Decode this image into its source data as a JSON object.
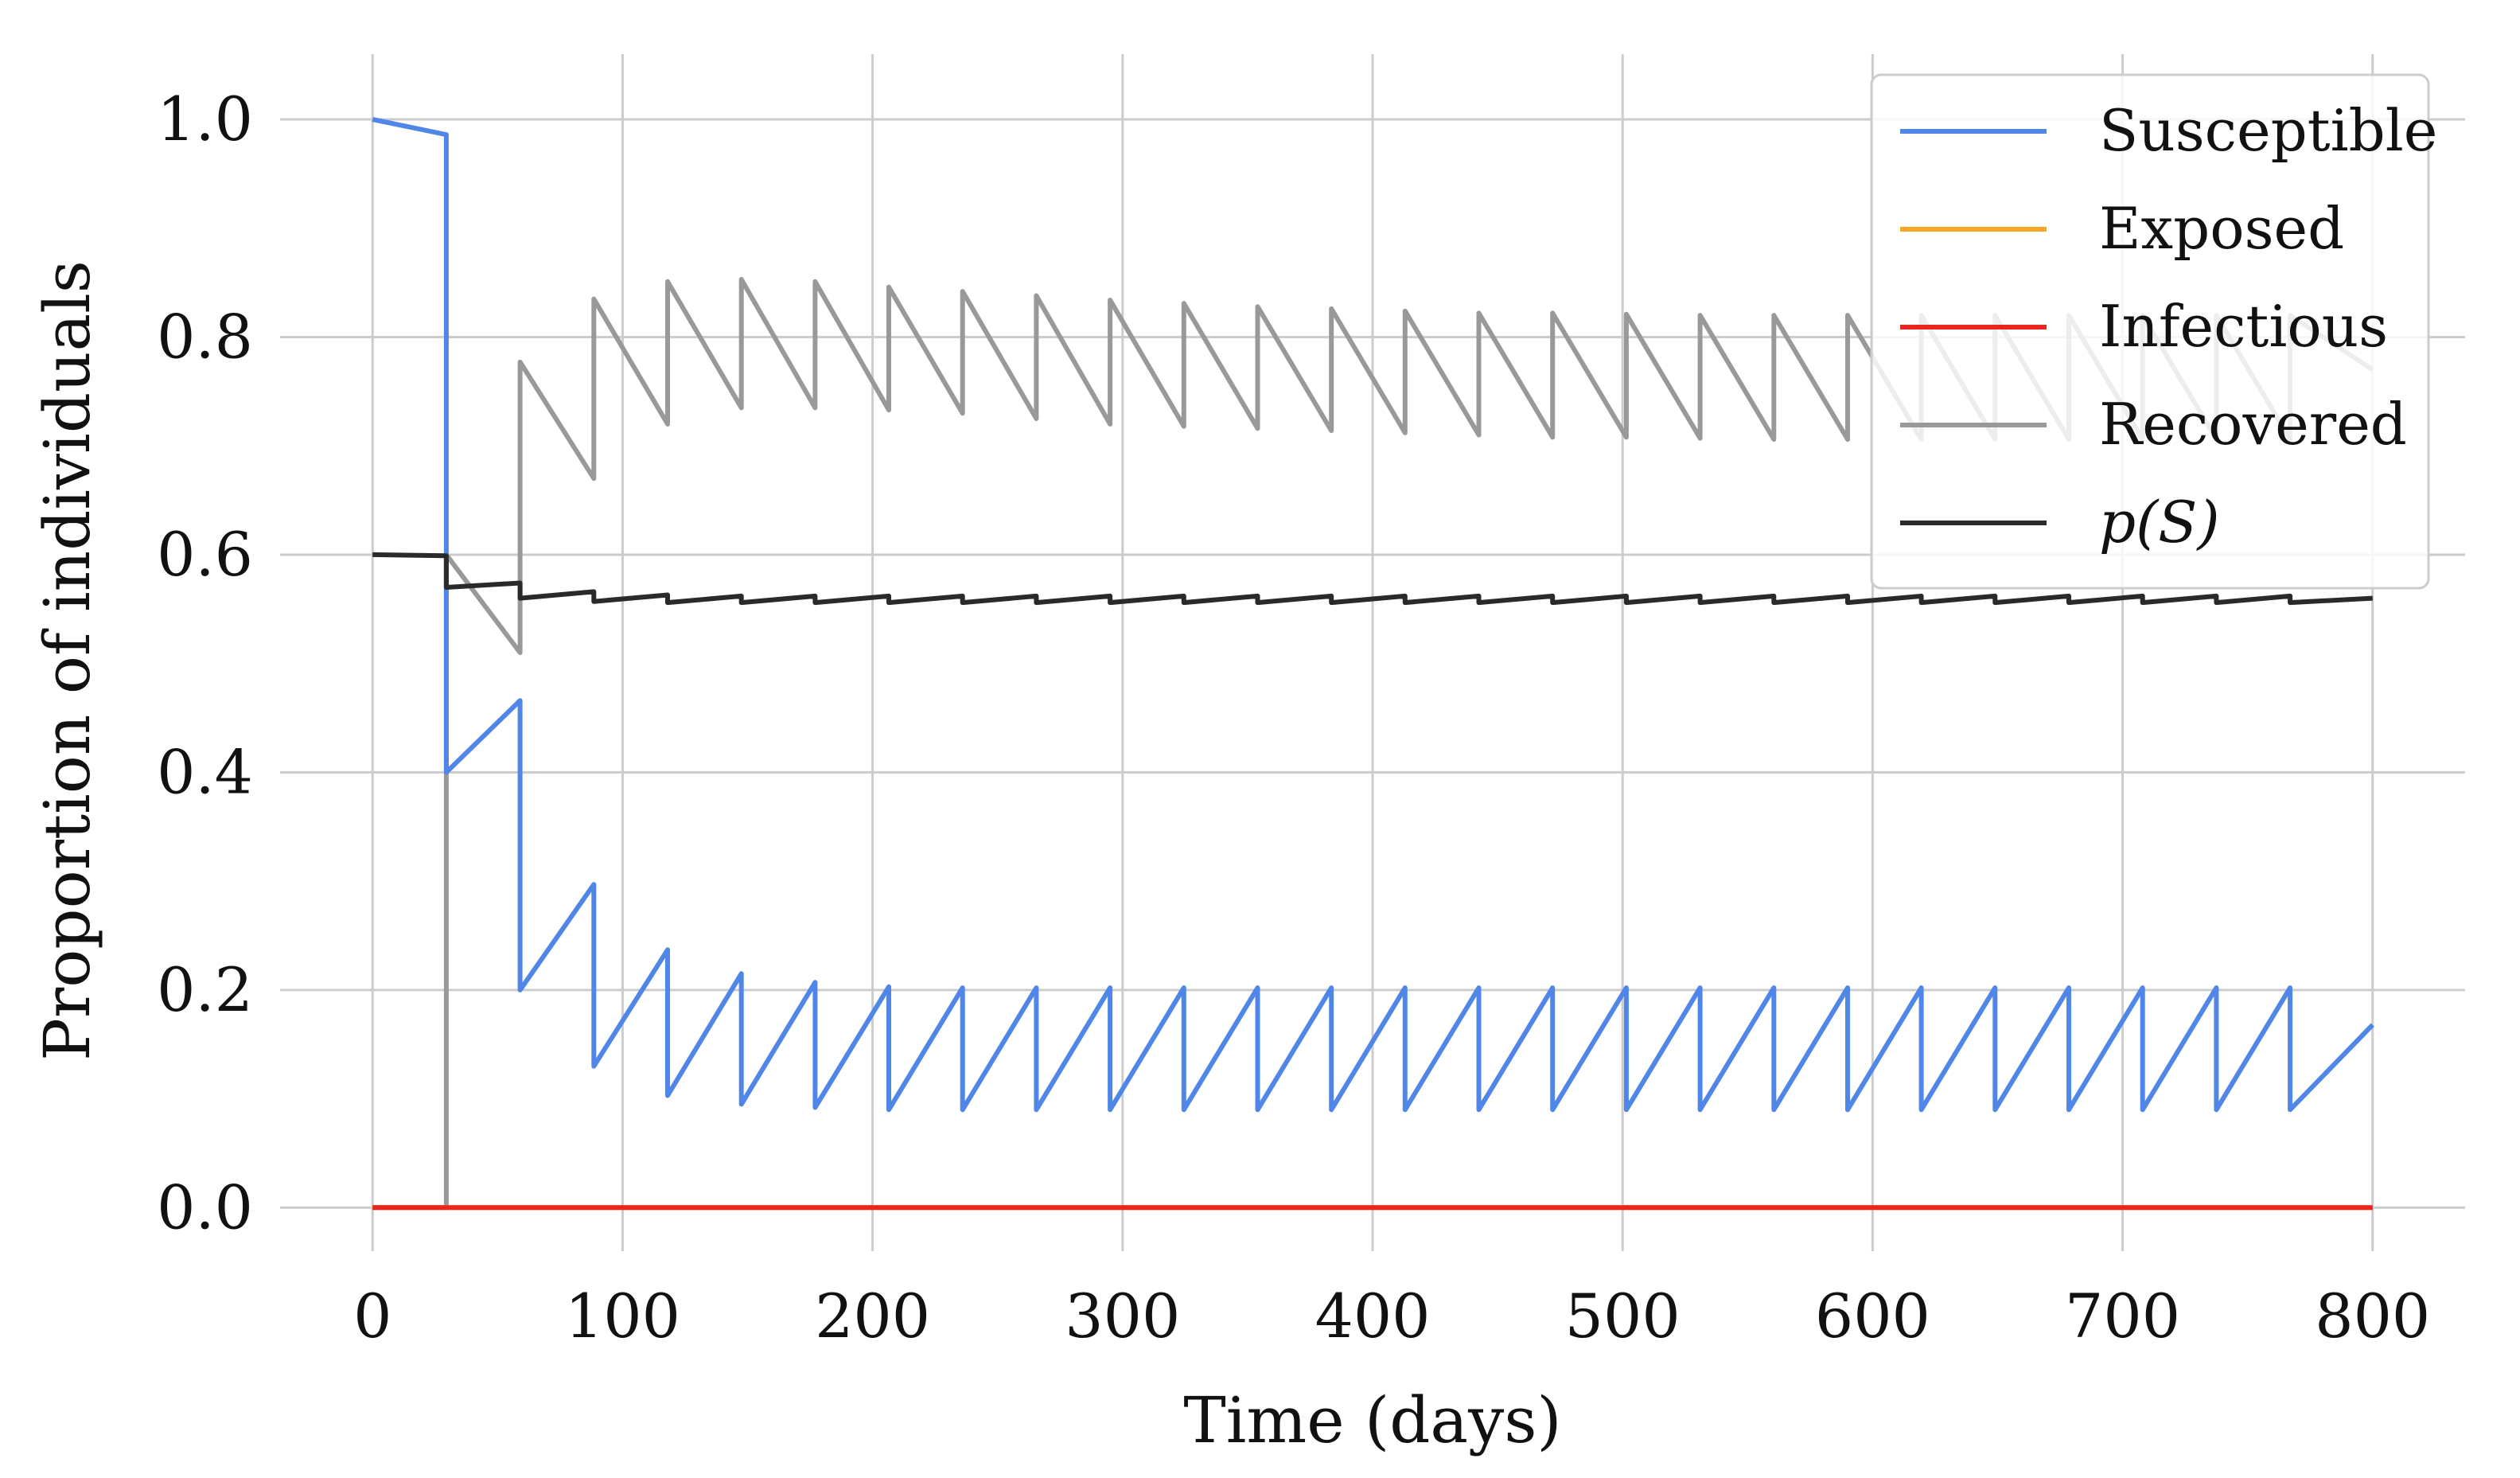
{
  "chart_data": {
    "type": "line",
    "title": "",
    "xlabel": "Time (days)",
    "ylabel": "Proportion of individuals",
    "xlim": [
      -37,
      837
    ],
    "ylim": [
      -0.04,
      1.06
    ],
    "xticks": [
      0,
      100,
      200,
      300,
      400,
      500,
      600,
      700,
      800
    ],
    "xtick_labels": [
      "0",
      "100",
      "200",
      "300",
      "400",
      "500",
      "600",
      "700",
      "800"
    ],
    "yticks": [
      0.0,
      0.2,
      0.4,
      0.6,
      0.8,
      1.0
    ],
    "ytick_labels": [
      "0.0",
      "0.2",
      "0.4",
      "0.6",
      "0.8",
      "1.0"
    ],
    "grid": true,
    "legend_position": "top-right",
    "series": [
      {
        "name": "Susceptible",
        "color": "#4f86e8",
        "x": [
          0,
          29.5,
          29.5,
          59,
          59,
          88.5,
          88.5,
          118,
          118,
          147.5,
          147.5,
          177,
          177,
          206.5,
          206.5,
          236,
          236,
          265.5,
          265.5,
          295,
          295,
          324.5,
          324.5,
          354,
          354,
          383.5,
          383.5,
          413,
          413,
          442.5,
          442.5,
          472,
          472,
          501.5,
          501.5,
          531,
          531,
          560.5,
          560.5,
          590,
          590,
          619.5,
          619.5,
          649,
          649,
          678.5,
          678.5,
          708,
          708,
          737.5,
          737.5,
          767,
          767,
          800
        ],
        "y": [
          1.0,
          0.986,
          0.4,
          0.466,
          0.2,
          0.297,
          0.13,
          0.237,
          0.103,
          0.215,
          0.095,
          0.207,
          0.092,
          0.203,
          0.09,
          0.202,
          0.09,
          0.202,
          0.09,
          0.202,
          0.09,
          0.202,
          0.09,
          0.202,
          0.09,
          0.202,
          0.09,
          0.202,
          0.09,
          0.202,
          0.09,
          0.202,
          0.09,
          0.202,
          0.09,
          0.202,
          0.09,
          0.202,
          0.09,
          0.202,
          0.09,
          0.202,
          0.09,
          0.202,
          0.09,
          0.202,
          0.09,
          0.202,
          0.09,
          0.202,
          0.09,
          0.202,
          0.09,
          0.168
        ]
      },
      {
        "name": "Exposed",
        "color": "#f5a623",
        "x": [
          0,
          800
        ],
        "y": [
          0.0,
          0.0
        ]
      },
      {
        "name": "Infectious",
        "color": "#e8261e",
        "x": [
          0,
          800
        ],
        "y": [
          0.0,
          0.0
        ]
      },
      {
        "name": "Recovered",
        "color": "#999999",
        "x": [
          0,
          29.5,
          29.5,
          59,
          59,
          88.5,
          88.5,
          118,
          118,
          147.5,
          147.5,
          177,
          177,
          206.5,
          206.5,
          236,
          236,
          265.5,
          265.5,
          295,
          295,
          324.5,
          324.5,
          354,
          354,
          383.5,
          383.5,
          413,
          413,
          442.5,
          442.5,
          472,
          472,
          501.5,
          501.5,
          531,
          531,
          560.5,
          560.5,
          590,
          590,
          619.5,
          619.5,
          649,
          649,
          678.5,
          678.5,
          708,
          708,
          737.5,
          737.5,
          767,
          767,
          800
        ],
        "y": [
          0.0,
          0.0,
          0.6,
          0.51,
          0.777,
          0.67,
          0.835,
          0.72,
          0.851,
          0.735,
          0.853,
          0.735,
          0.851,
          0.733,
          0.846,
          0.73,
          0.842,
          0.725,
          0.838,
          0.72,
          0.834,
          0.718,
          0.831,
          0.716,
          0.828,
          0.714,
          0.826,
          0.712,
          0.824,
          0.71,
          0.822,
          0.708,
          0.822,
          0.708,
          0.821,
          0.707,
          0.82,
          0.706,
          0.82,
          0.706,
          0.82,
          0.706,
          0.82,
          0.706,
          0.82,
          0.706,
          0.82,
          0.706,
          0.82,
          0.706,
          0.82,
          0.706,
          0.82,
          0.77
        ]
      },
      {
        "name": "p(S)",
        "color": "#2a2a2a",
        "x": [
          0,
          29.5,
          29.5,
          59,
          59,
          88.5,
          88.5,
          118,
          118,
          147.5,
          147.5,
          177,
          177,
          206.5,
          206.5,
          236,
          236,
          265.5,
          265.5,
          295,
          295,
          324.5,
          324.5,
          354,
          354,
          383.5,
          383.5,
          413,
          413,
          442.5,
          442.5,
          472,
          472,
          501.5,
          501.5,
          531,
          531,
          560.5,
          560.5,
          590,
          590,
          619.5,
          619.5,
          649,
          649,
          678.5,
          678.5,
          708,
          708,
          737.5,
          737.5,
          767,
          767,
          800
        ],
        "y": [
          0.6,
          0.599,
          0.57,
          0.574,
          0.56,
          0.566,
          0.557,
          0.563,
          0.556,
          0.562,
          0.556,
          0.562,
          0.556,
          0.562,
          0.556,
          0.562,
          0.556,
          0.562,
          0.556,
          0.562,
          0.556,
          0.562,
          0.556,
          0.562,
          0.556,
          0.562,
          0.556,
          0.562,
          0.556,
          0.562,
          0.556,
          0.562,
          0.556,
          0.562,
          0.556,
          0.562,
          0.556,
          0.562,
          0.556,
          0.562,
          0.556,
          0.562,
          0.556,
          0.562,
          0.556,
          0.562,
          0.556,
          0.562,
          0.556,
          0.562,
          0.556,
          0.562,
          0.556,
          0.56
        ]
      }
    ]
  },
  "legend": {
    "entries": [
      {
        "label": "Susceptible",
        "color": "#4f86e8"
      },
      {
        "label": "Exposed",
        "color": "#f5a623"
      },
      {
        "label": "Infectious",
        "color": "#e8261e"
      },
      {
        "label": "Recovered",
        "color": "#999999"
      },
      {
        "label": "p(S)",
        "color": "#2a2a2a"
      }
    ]
  }
}
